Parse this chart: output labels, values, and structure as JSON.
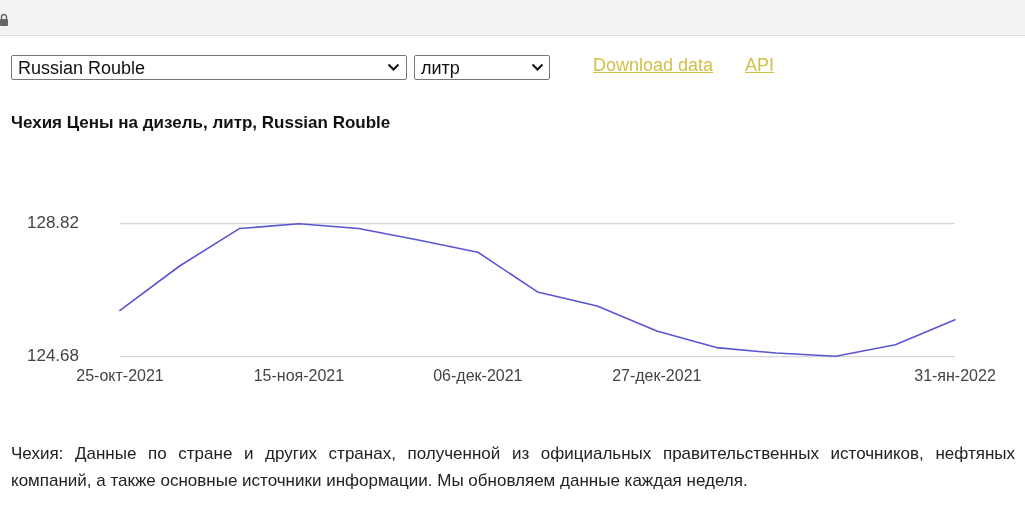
{
  "chart_data": {
    "type": "line",
    "title": "Чехия Цены на дизель, литр, Russian Rouble",
    "categories": [
      "25-окт-2021",
      null,
      null,
      "15-ноя-2021",
      null,
      null,
      "06-дек-2021",
      null,
      null,
      "27-дек-2021",
      null,
      null,
      null,
      null,
      "31-ян-2022"
    ],
    "values": [
      126.11,
      127.5,
      128.67,
      128.82,
      128.67,
      128.31,
      127.93,
      126.69,
      126.25,
      125.47,
      124.95,
      124.78,
      124.68,
      125.04,
      125.82
    ],
    "color": "#5a55d2",
    "ylim": [
      124.6,
      128.9
    ],
    "yticks": [
      124.68,
      128.82
    ],
    "grid": "y",
    "marker": "none",
    "line_style": "solid",
    "annotations": [
      "Russian Rouble",
      "литр",
      "Download data",
      "API",
      "Чехия: Данные по стране и других странах, полученной из официальных правительственных источников, нефтяных компаний, а также основные источники информации. Мы обновляем данные каждая неделя."
    ]
  }
}
